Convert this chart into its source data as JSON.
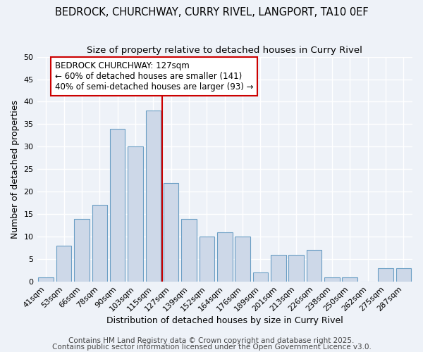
{
  "title": "BEDROCK, CHURCHWAY, CURRY RIVEL, LANGPORT, TA10 0EF",
  "subtitle": "Size of property relative to detached houses in Curry Rivel",
  "xlabel": "Distribution of detached houses by size in Curry Rivel",
  "ylabel": "Number of detached properties",
  "categories": [
    "41sqm",
    "53sqm",
    "66sqm",
    "78sqm",
    "90sqm",
    "103sqm",
    "115sqm",
    "127sqm",
    "139sqm",
    "152sqm",
    "164sqm",
    "176sqm",
    "189sqm",
    "201sqm",
    "213sqm",
    "226sqm",
    "238sqm",
    "250sqm",
    "262sqm",
    "275sqm",
    "287sqm"
  ],
  "values": [
    1,
    8,
    14,
    17,
    34,
    30,
    38,
    22,
    14,
    10,
    11,
    10,
    2,
    6,
    6,
    7,
    1,
    1,
    0,
    3,
    3
  ],
  "bar_color": "#cdd8e8",
  "bar_edge_color": "#6a9ec4",
  "vline_x": 6.5,
  "vline_color": "#cc0000",
  "annotation_text": "BEDROCK CHURCHWAY: 127sqm\n← 60% of detached houses are smaller (141)\n40% of semi-detached houses are larger (93) →",
  "annotation_box_color": "#ffffff",
  "annotation_box_edge_color": "#cc0000",
  "ylim": [
    0,
    50
  ],
  "yticks": [
    0,
    5,
    10,
    15,
    20,
    25,
    30,
    35,
    40,
    45,
    50
  ],
  "footer1": "Contains HM Land Registry data © Crown copyright and database right 2025.",
  "footer2": "Contains public sector information licensed under the Open Government Licence v3.0.",
  "bg_color": "#eef2f8",
  "grid_color": "#ffffff",
  "title_fontsize": 10.5,
  "subtitle_fontsize": 9.5,
  "axis_label_fontsize": 9,
  "tick_fontsize": 8,
  "annotation_fontsize": 8.5,
  "footer_fontsize": 7.5
}
